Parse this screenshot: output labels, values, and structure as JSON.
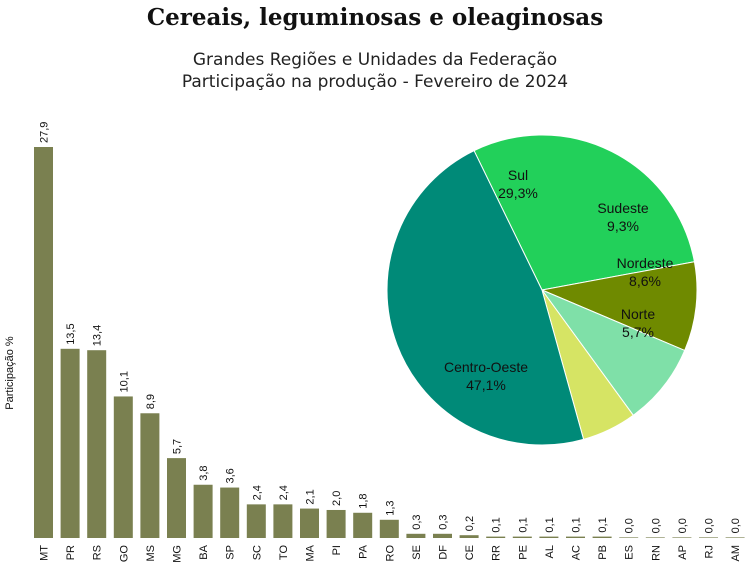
{
  "title": "Cereais, leguminosas e oleaginosas",
  "subtitle_line1": "Grandes Regiões e Unidades da Federação",
  "subtitle_line2": "Participação na produção - Fevereiro de 2024",
  "chart_data": [
    {
      "type": "bar",
      "ylabel": "Participação %",
      "xlabel": "",
      "bar_color": "#7a8050",
      "categories": [
        "MT",
        "PR",
        "RS",
        "GO",
        "MS",
        "MG",
        "BA",
        "SP",
        "SC",
        "TO",
        "MA",
        "PI",
        "PA",
        "RO",
        "SE",
        "DF",
        "CE",
        "RR",
        "PE",
        "AL",
        "AC",
        "PB",
        "ES",
        "RN",
        "AP",
        "RJ",
        "AM"
      ],
      "values": [
        27.9,
        13.5,
        13.4,
        10.1,
        8.9,
        5.7,
        3.8,
        3.6,
        2.4,
        2.4,
        2.1,
        2.0,
        1.8,
        1.3,
        0.3,
        0.3,
        0.2,
        0.1,
        0.1,
        0.1,
        0.1,
        0.1,
        0.0,
        0.0,
        0.0,
        0.0,
        0.0
      ],
      "value_labels": [
        "27,9",
        "13,5",
        "13,4",
        "10,1",
        "8,9",
        "5,7",
        "3,8",
        "3,6",
        "2,4",
        "2,4",
        "2,1",
        "2,0",
        "1,8",
        "1,3",
        "0,3",
        "0,3",
        "0,2",
        "0,1",
        "0,1",
        "0,1",
        "0,1",
        "0,1",
        "0,0",
        "0,0",
        "0,0",
        "0,0",
        "0,0"
      ],
      "grid": false
    },
    {
      "type": "pie",
      "slices": [
        {
          "label": "Sul",
          "value": 29.3,
          "value_label": "29,3%",
          "color": "#22d05a"
        },
        {
          "label": "Sudeste",
          "value": 9.3,
          "value_label": "9,3%",
          "color": "#6f8a00"
        },
        {
          "label": "Nordeste",
          "value": 8.6,
          "value_label": "8,6%",
          "color": "#7fe0a8"
        },
        {
          "label": "Norte",
          "value": 5.7,
          "value_label": "5,7%",
          "color": "#d6e464"
        },
        {
          "label": "Centro-Oeste",
          "value": 47.1,
          "value_label": "47,1%",
          "color": "#008a78"
        }
      ]
    }
  ]
}
